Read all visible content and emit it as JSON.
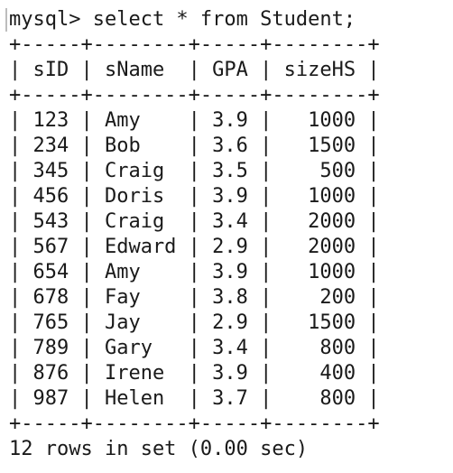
{
  "terminal": {
    "prompt": "mysql> ",
    "command": "select * from Student;",
    "border": "+-----+--------+-----+--------+",
    "header": "| sID | sName  | GPA | sizeHS |",
    "rows": [
      "| 123 | Amy    | 3.9 |   1000 |",
      "| 234 | Bob    | 3.6 |   1500 |",
      "| 345 | Craig  | 3.5 |    500 |",
      "| 456 | Doris  | 3.9 |   1000 |",
      "| 543 | Craig  | 3.4 |   2000 |",
      "| 567 | Edward | 2.9 |   2000 |",
      "| 654 | Amy    | 3.9 |   1000 |",
      "| 678 | Fay    | 3.8 |    200 |",
      "| 765 | Jay    | 2.9 |   1500 |",
      "| 789 | Gary   | 3.4 |    800 |",
      "| 876 | Irene  | 3.9 |    400 |",
      "| 987 | Helen  | 3.7 |    800 |"
    ],
    "footer": "12 rows in set (0.00 sec)"
  },
  "colors": {
    "background": "#ffffff",
    "text": "#1a1a1a"
  }
}
